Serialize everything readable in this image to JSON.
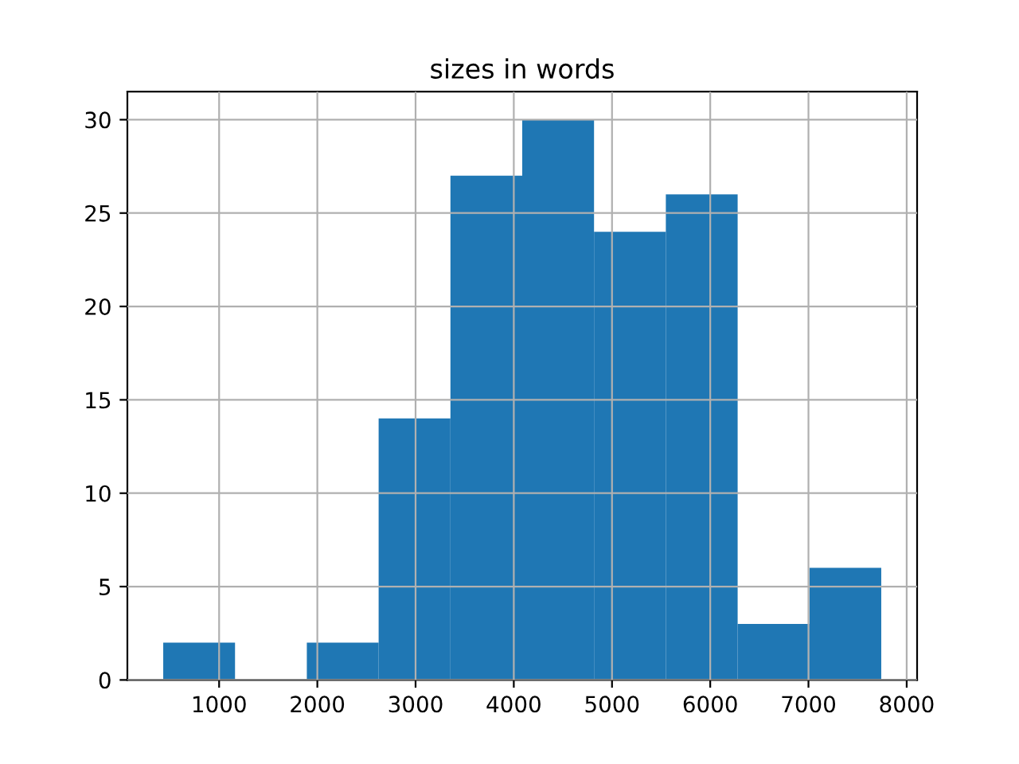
{
  "chart_data": {
    "type": "histogram",
    "title": "sizes in words",
    "bins": [
      431,
      1162,
      1893,
      2624,
      3355,
      4086,
      4817,
      5548,
      6279,
      7010,
      7741
    ],
    "values": [
      2,
      0,
      2,
      14,
      27,
      30,
      24,
      26,
      3,
      6
    ],
    "color": "#1f77b4",
    "xlim": [
      66,
      8106
    ],
    "xticks": [
      1000,
      2000,
      3000,
      4000,
      5000,
      6000,
      7000,
      8000
    ],
    "ylim": [
      0,
      31.5
    ],
    "yticks": [
      0,
      5,
      10,
      15,
      20,
      25,
      30
    ],
    "grid": true,
    "legend": false
  }
}
